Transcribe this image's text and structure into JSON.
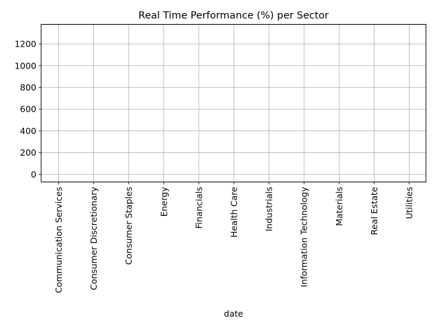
{
  "chart_data": {
    "type": "line",
    "title": "Real Time Performance (%) per Sector",
    "xlabel": "date",
    "ylabel": "",
    "categories": [
      "Communication Services",
      "Consumer Discretionary",
      "Consumer Staples",
      "Energy",
      "Financials",
      "Health Care",
      "Industrials",
      "Information Technology",
      "Materials",
      "Real Estate",
      "Utilities"
    ],
    "y_ticks": [
      0,
      200,
      400,
      600,
      800,
      1000,
      1200
    ],
    "ylim": [
      -70,
      1380
    ],
    "grid": true,
    "series": []
  }
}
